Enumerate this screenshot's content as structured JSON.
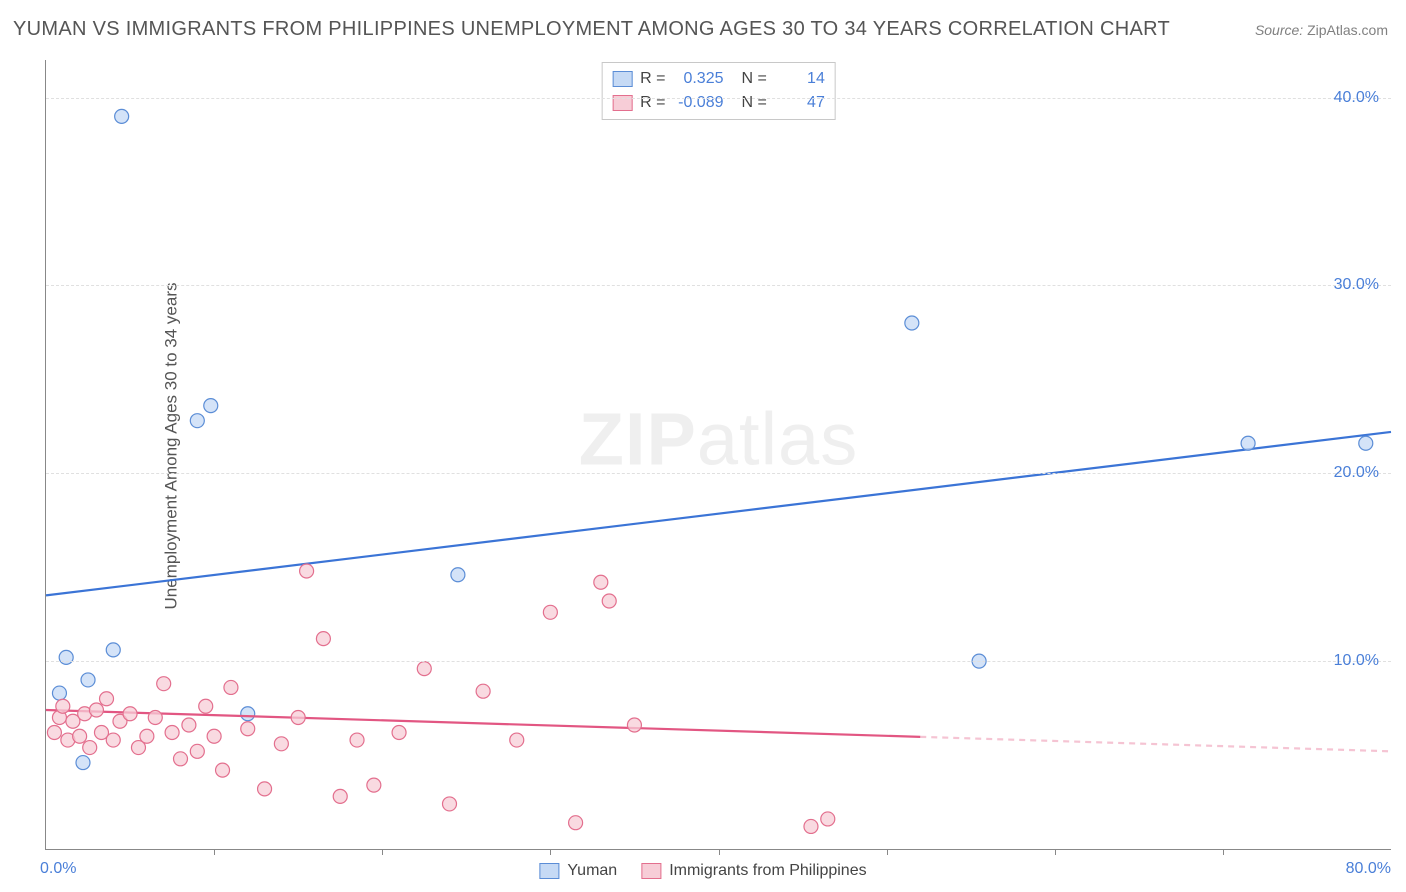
{
  "title": "YUMAN VS IMMIGRANTS FROM PHILIPPINES UNEMPLOYMENT AMONG AGES 30 TO 34 YEARS CORRELATION CHART",
  "source_label": "Source:",
  "source_value": "ZipAtlas.com",
  "ylabel": "Unemployment Among Ages 30 to 34 years",
  "watermark_bold": "ZIP",
  "watermark_rest": "atlas",
  "chart": {
    "type": "scatter",
    "xlim": [
      0,
      80
    ],
    "ylim": [
      0,
      42
    ],
    "xtick_positions": [
      10,
      20,
      30,
      40,
      50,
      60,
      70
    ],
    "ytick_positions": [
      10,
      20,
      30,
      40
    ],
    "ytick_labels": [
      "10.0%",
      "20.0%",
      "30.0%",
      "40.0%"
    ],
    "xaxis_label_left": "0.0%",
    "xaxis_label_right": "80.0%",
    "grid_color": "#e0e0e0",
    "background_color": "#ffffff",
    "series": [
      {
        "name": "Yuman",
        "marker_fill": "#c6daf5",
        "marker_stroke": "#5b8dd6",
        "marker_radius": 7,
        "line_color": "#3b74d6",
        "line_width": 2.2,
        "r": "0.325",
        "n": "14",
        "trend": {
          "x1": 0,
          "y1": 13.5,
          "x2": 80,
          "y2": 22.2,
          "dash_from_x": null
        },
        "points": [
          [
            0.8,
            8.3
          ],
          [
            1.2,
            10.2
          ],
          [
            2.2,
            4.6
          ],
          [
            2.5,
            9.0
          ],
          [
            4.0,
            10.6
          ],
          [
            4.5,
            39.0
          ],
          [
            9.0,
            22.8
          ],
          [
            9.8,
            23.6
          ],
          [
            24.5,
            14.6
          ],
          [
            51.5,
            28.0
          ],
          [
            55.5,
            10.0
          ],
          [
            71.5,
            21.6
          ],
          [
            78.5,
            21.6
          ],
          [
            12.0,
            7.2
          ]
        ]
      },
      {
        "name": "Immigrants from Philippines",
        "marker_fill": "#f7cdd7",
        "marker_stroke": "#e36f8e",
        "marker_radius": 7,
        "line_color": "#e25682",
        "line_width": 2.2,
        "r": "-0.089",
        "n": "47",
        "trend": {
          "x1": 0,
          "y1": 7.4,
          "x2": 80,
          "y2": 5.2,
          "dash_from_x": 52
        },
        "points": [
          [
            0.5,
            6.2
          ],
          [
            0.8,
            7.0
          ],
          [
            1.0,
            7.6
          ],
          [
            1.3,
            5.8
          ],
          [
            1.6,
            6.8
          ],
          [
            2.0,
            6.0
          ],
          [
            2.3,
            7.2
          ],
          [
            2.6,
            5.4
          ],
          [
            3.0,
            7.4
          ],
          [
            3.3,
            6.2
          ],
          [
            3.6,
            8.0
          ],
          [
            4.0,
            5.8
          ],
          [
            4.4,
            6.8
          ],
          [
            5.0,
            7.2
          ],
          [
            5.5,
            5.4
          ],
          [
            6.0,
            6.0
          ],
          [
            6.5,
            7.0
          ],
          [
            7.0,
            8.8
          ],
          [
            7.5,
            6.2
          ],
          [
            8.0,
            4.8
          ],
          [
            8.5,
            6.6
          ],
          [
            9.0,
            5.2
          ],
          [
            9.5,
            7.6
          ],
          [
            10.0,
            6.0
          ],
          [
            10.5,
            4.2
          ],
          [
            11.0,
            8.6
          ],
          [
            12.0,
            6.4
          ],
          [
            13.0,
            3.2
          ],
          [
            14.0,
            5.6
          ],
          [
            15.0,
            7.0
          ],
          [
            15.5,
            14.8
          ],
          [
            16.5,
            11.2
          ],
          [
            17.5,
            2.8
          ],
          [
            18.5,
            5.8
          ],
          [
            19.5,
            3.4
          ],
          [
            21.0,
            6.2
          ],
          [
            22.5,
            9.6
          ],
          [
            24.0,
            2.4
          ],
          [
            26.0,
            8.4
          ],
          [
            28.0,
            5.8
          ],
          [
            30.0,
            12.6
          ],
          [
            31.5,
            1.4
          ],
          [
            33.0,
            14.2
          ],
          [
            33.5,
            13.2
          ],
          [
            35.0,
            6.6
          ],
          [
            45.5,
            1.2
          ],
          [
            46.5,
            1.6
          ]
        ]
      }
    ]
  },
  "legend_top_label_r": "R =",
  "legend_top_label_n": "N =",
  "legend_bottom": [
    {
      "label": "Yuman",
      "fill": "#c6daf5",
      "stroke": "#5b8dd6"
    },
    {
      "label": "Immigrants from Philippines",
      "fill": "#f7cdd7",
      "stroke": "#e36f8e"
    }
  ]
}
